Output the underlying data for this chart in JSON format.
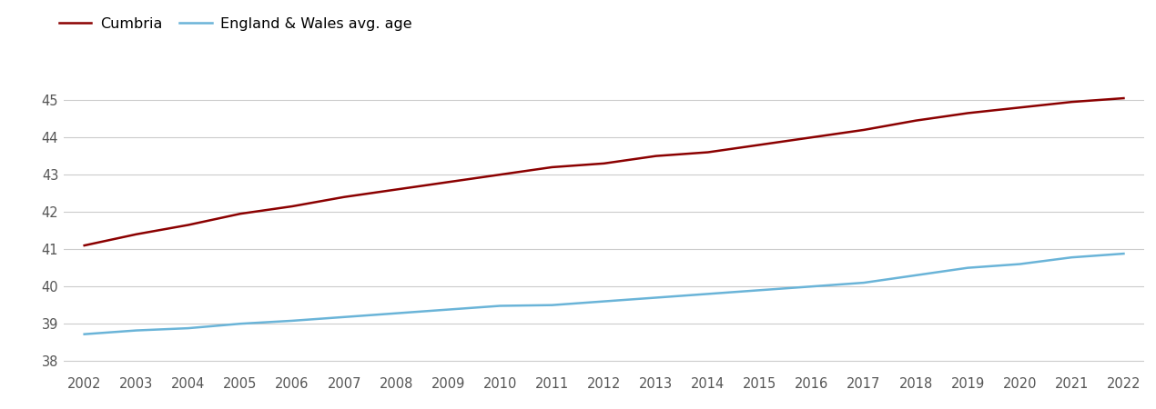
{
  "years": [
    2002,
    2003,
    2004,
    2005,
    2006,
    2007,
    2008,
    2009,
    2010,
    2011,
    2012,
    2013,
    2014,
    2015,
    2016,
    2017,
    2018,
    2019,
    2020,
    2021,
    2022
  ],
  "cumbria": [
    41.1,
    41.4,
    41.65,
    41.95,
    42.15,
    42.4,
    42.6,
    42.8,
    43.0,
    43.2,
    43.3,
    43.5,
    43.6,
    43.8,
    44.0,
    44.2,
    44.45,
    44.65,
    44.8,
    44.95,
    45.05
  ],
  "england_wales": [
    38.72,
    38.82,
    38.88,
    39.0,
    39.08,
    39.18,
    39.28,
    39.38,
    39.48,
    39.5,
    39.6,
    39.7,
    39.8,
    39.9,
    40.0,
    40.1,
    40.3,
    40.5,
    40.6,
    40.78,
    40.88
  ],
  "cumbria_color": "#8B0000",
  "england_wales_color": "#6ab4d8",
  "cumbria_label": "Cumbria",
  "england_wales_label": "England & Wales avg. age",
  "ylim": [
    37.7,
    45.6
  ],
  "yticks": [
    38,
    39,
    40,
    41,
    42,
    43,
    44,
    45
  ],
  "background_color": "#ffffff",
  "grid_color": "#cccccc",
  "line_width": 1.8,
  "legend_fontsize": 11.5,
  "tick_fontsize": 10.5,
  "tick_color": "#555555"
}
